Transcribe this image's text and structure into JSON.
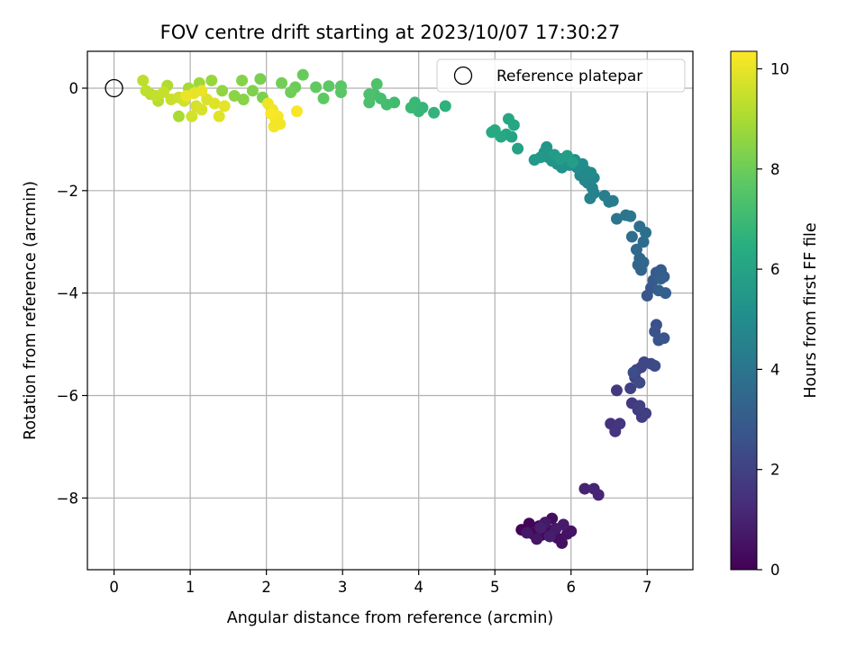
{
  "chart_data": {
    "type": "scatter",
    "title": "FOV centre drift starting at 2023/10/07 17:30:27",
    "xlabel": "Angular distance from reference (arcmin)",
    "ylabel": "Rotation from reference (arcmin)",
    "xlim": [
      -0.35,
      7.6
    ],
    "ylim": [
      -9.4,
      0.72
    ],
    "xticks": [
      0,
      1,
      2,
      3,
      4,
      5,
      6,
      7
    ],
    "yticks": [
      0,
      -2,
      -4,
      -6,
      -8
    ],
    "xtick_labels": [
      "0",
      "1",
      "2",
      "3",
      "4",
      "5",
      "6",
      "7"
    ],
    "ytick_labels": [
      "0",
      "−2",
      "−4",
      "−6",
      "−8"
    ],
    "grid": true,
    "legend": {
      "placement": "top-right",
      "entries": [
        "Reference platepar"
      ]
    },
    "reference_point": {
      "x": 0,
      "y": 0
    },
    "colorbar": {
      "label": "Hours from first FF file",
      "colormap": "viridis",
      "range": [
        0,
        10.35
      ],
      "ticks": [
        0,
        2,
        4,
        6,
        8,
        10
      ],
      "tick_labels": [
        "0",
        "2",
        "4",
        "6",
        "8",
        "10"
      ]
    },
    "points": [
      {
        "x": 5.35,
        "y": -8.62,
        "h": 0.05
      },
      {
        "x": 5.45,
        "y": -8.5,
        "h": 0.1
      },
      {
        "x": 5.5,
        "y": -8.7,
        "h": 0.15
      },
      {
        "x": 5.58,
        "y": -8.55,
        "h": 0.2
      },
      {
        "x": 5.62,
        "y": -8.72,
        "h": 0.25
      },
      {
        "x": 5.7,
        "y": -8.62,
        "h": 0.3
      },
      {
        "x": 5.75,
        "y": -8.4,
        "h": 0.35
      },
      {
        "x": 5.82,
        "y": -8.78,
        "h": 0.4
      },
      {
        "x": 5.88,
        "y": -8.88,
        "h": 0.45
      },
      {
        "x": 5.95,
        "y": -8.7,
        "h": 0.5
      },
      {
        "x": 6.0,
        "y": -8.65,
        "h": 0.55
      },
      {
        "x": 5.55,
        "y": -8.8,
        "h": 0.6
      },
      {
        "x": 5.42,
        "y": -8.68,
        "h": 0.65
      },
      {
        "x": 5.66,
        "y": -8.48,
        "h": 0.7
      },
      {
        "x": 5.8,
        "y": -8.6,
        "h": 0.75
      },
      {
        "x": 5.9,
        "y": -8.52,
        "h": 0.8
      },
      {
        "x": 5.72,
        "y": -8.75,
        "h": 0.85
      },
      {
        "x": 5.6,
        "y": -8.58,
        "h": 0.9
      },
      {
        "x": 6.18,
        "y": -7.82,
        "h": 1.0
      },
      {
        "x": 6.3,
        "y": -7.82,
        "h": 1.05
      },
      {
        "x": 6.36,
        "y": -7.94,
        "h": 1.1
      },
      {
        "x": 6.52,
        "y": -6.55,
        "h": 1.5
      },
      {
        "x": 6.58,
        "y": -6.7,
        "h": 1.55
      },
      {
        "x": 6.64,
        "y": -6.55,
        "h": 1.6
      },
      {
        "x": 6.6,
        "y": -5.9,
        "h": 1.7
      },
      {
        "x": 6.8,
        "y": -6.15,
        "h": 1.75
      },
      {
        "x": 6.88,
        "y": -6.28,
        "h": 1.8
      },
      {
        "x": 6.93,
        "y": -6.42,
        "h": 1.85
      },
      {
        "x": 6.98,
        "y": -6.35,
        "h": 1.9
      },
      {
        "x": 6.9,
        "y": -6.2,
        "h": 1.95
      },
      {
        "x": 6.78,
        "y": -5.86,
        "h": 2.0
      },
      {
        "x": 6.84,
        "y": -5.65,
        "h": 2.05
      },
      {
        "x": 6.86,
        "y": -5.5,
        "h": 2.1
      },
      {
        "x": 6.92,
        "y": -5.45,
        "h": 2.15
      },
      {
        "x": 6.96,
        "y": -5.35,
        "h": 2.2
      },
      {
        "x": 7.05,
        "y": -5.38,
        "h": 2.25
      },
      {
        "x": 7.1,
        "y": -5.42,
        "h": 2.3
      },
      {
        "x": 6.9,
        "y": -5.75,
        "h": 2.35
      },
      {
        "x": 6.82,
        "y": -5.55,
        "h": 2.4
      },
      {
        "x": 7.12,
        "y": -4.62,
        "h": 2.55
      },
      {
        "x": 7.1,
        "y": -4.75,
        "h": 2.6
      },
      {
        "x": 7.15,
        "y": -4.92,
        "h": 2.65
      },
      {
        "x": 7.22,
        "y": -4.88,
        "h": 2.7
      },
      {
        "x": 7.0,
        "y": -4.05,
        "h": 2.8
      },
      {
        "x": 7.05,
        "y": -3.9,
        "h": 2.85
      },
      {
        "x": 7.08,
        "y": -3.75,
        "h": 2.9
      },
      {
        "x": 7.12,
        "y": -3.6,
        "h": 2.95
      },
      {
        "x": 7.18,
        "y": -3.55,
        "h": 3.0
      },
      {
        "x": 7.22,
        "y": -3.68,
        "h": 3.05
      },
      {
        "x": 7.24,
        "y": -4.0,
        "h": 3.1
      },
      {
        "x": 7.15,
        "y": -3.95,
        "h": 3.15
      },
      {
        "x": 7.18,
        "y": -3.72,
        "h": 3.2
      },
      {
        "x": 6.88,
        "y": -3.45,
        "h": 3.3
      },
      {
        "x": 6.92,
        "y": -3.55,
        "h": 3.35
      },
      {
        "x": 6.95,
        "y": -3.4,
        "h": 3.4
      },
      {
        "x": 6.9,
        "y": -3.32,
        "h": 3.45
      },
      {
        "x": 6.86,
        "y": -3.15,
        "h": 3.5
      },
      {
        "x": 6.95,
        "y": -3.0,
        "h": 3.6
      },
      {
        "x": 6.8,
        "y": -2.9,
        "h": 3.7
      },
      {
        "x": 6.9,
        "y": -2.7,
        "h": 3.75
      },
      {
        "x": 6.98,
        "y": -2.82,
        "h": 3.8
      },
      {
        "x": 6.6,
        "y": -2.55,
        "h": 4.0
      },
      {
        "x": 6.72,
        "y": -2.48,
        "h": 4.05
      },
      {
        "x": 6.78,
        "y": -2.5,
        "h": 4.1
      },
      {
        "x": 6.5,
        "y": -2.22,
        "h": 4.3
      },
      {
        "x": 6.55,
        "y": -2.2,
        "h": 4.35
      },
      {
        "x": 6.44,
        "y": -2.1,
        "h": 4.4
      },
      {
        "x": 6.3,
        "y": -2.05,
        "h": 4.5
      },
      {
        "x": 6.25,
        "y": -2.15,
        "h": 4.55
      },
      {
        "x": 6.28,
        "y": -1.95,
        "h": 4.6
      },
      {
        "x": 6.22,
        "y": -1.85,
        "h": 4.65
      },
      {
        "x": 6.3,
        "y": -1.75,
        "h": 4.7
      },
      {
        "x": 6.18,
        "y": -1.8,
        "h": 4.75
      },
      {
        "x": 6.12,
        "y": -1.7,
        "h": 4.8
      },
      {
        "x": 6.2,
        "y": -1.62,
        "h": 4.85
      },
      {
        "x": 6.26,
        "y": -1.65,
        "h": 4.9
      },
      {
        "x": 6.08,
        "y": -1.55,
        "h": 4.95
      },
      {
        "x": 6.15,
        "y": -1.48,
        "h": 5.0
      },
      {
        "x": 6.05,
        "y": -1.4,
        "h": 5.05
      },
      {
        "x": 5.98,
        "y": -1.5,
        "h": 5.1
      },
      {
        "x": 5.92,
        "y": -1.42,
        "h": 5.15
      },
      {
        "x": 5.88,
        "y": -1.55,
        "h": 5.2
      },
      {
        "x": 5.82,
        "y": -1.48,
        "h": 5.25
      },
      {
        "x": 5.75,
        "y": -1.42,
        "h": 5.3
      },
      {
        "x": 5.7,
        "y": -1.35,
        "h": 5.35
      },
      {
        "x": 5.65,
        "y": -1.25,
        "h": 5.4
      },
      {
        "x": 5.68,
        "y": -1.15,
        "h": 5.45
      },
      {
        "x": 5.6,
        "y": -1.35,
        "h": 5.5
      },
      {
        "x": 5.52,
        "y": -1.4,
        "h": 5.55
      },
      {
        "x": 5.78,
        "y": -1.3,
        "h": 5.6
      },
      {
        "x": 5.86,
        "y": -1.38,
        "h": 5.65
      },
      {
        "x": 5.95,
        "y": -1.32,
        "h": 5.7
      },
      {
        "x": 6.02,
        "y": -1.45,
        "h": 5.75
      },
      {
        "x": 5.3,
        "y": -1.18,
        "h": 5.9
      },
      {
        "x": 5.22,
        "y": -0.95,
        "h": 6.0
      },
      {
        "x": 5.15,
        "y": -0.9,
        "h": 6.05
      },
      {
        "x": 5.25,
        "y": -0.72,
        "h": 6.1
      },
      {
        "x": 5.18,
        "y": -0.6,
        "h": 6.15
      },
      {
        "x": 5.08,
        "y": -0.95,
        "h": 6.2
      },
      {
        "x": 5.0,
        "y": -0.82,
        "h": 6.25
      },
      {
        "x": 4.96,
        "y": -0.86,
        "h": 6.3
      },
      {
        "x": 4.35,
        "y": -0.35,
        "h": 6.6
      },
      {
        "x": 4.2,
        "y": -0.48,
        "h": 6.7
      },
      {
        "x": 4.05,
        "y": -0.38,
        "h": 6.8
      },
      {
        "x": 4.0,
        "y": -0.45,
        "h": 6.85
      },
      {
        "x": 3.95,
        "y": -0.28,
        "h": 6.9
      },
      {
        "x": 3.9,
        "y": -0.38,
        "h": 6.95
      },
      {
        "x": 3.68,
        "y": -0.28,
        "h": 7.1
      },
      {
        "x": 3.58,
        "y": -0.32,
        "h": 7.15
      },
      {
        "x": 3.5,
        "y": -0.2,
        "h": 7.2
      },
      {
        "x": 3.42,
        "y": -0.12,
        "h": 7.25
      },
      {
        "x": 3.35,
        "y": -0.28,
        "h": 7.3
      },
      {
        "x": 3.35,
        "y": -0.12,
        "h": 7.35
      },
      {
        "x": 3.45,
        "y": 0.08,
        "h": 7.4
      },
      {
        "x": 2.98,
        "y": -0.08,
        "h": 7.6
      },
      {
        "x": 2.98,
        "y": 0.04,
        "h": 7.65
      },
      {
        "x": 2.82,
        "y": 0.04,
        "h": 7.7
      },
      {
        "x": 2.75,
        "y": -0.2,
        "h": 7.75
      },
      {
        "x": 2.65,
        "y": 0.02,
        "h": 7.8
      },
      {
        "x": 2.48,
        "y": 0.26,
        "h": 7.9
      },
      {
        "x": 2.38,
        "y": 0.02,
        "h": 8.0
      },
      {
        "x": 2.32,
        "y": -0.08,
        "h": 8.05
      },
      {
        "x": 2.2,
        "y": 0.1,
        "h": 8.1
      },
      {
        "x": 1.92,
        "y": 0.18,
        "h": 8.2
      },
      {
        "x": 1.95,
        "y": -0.18,
        "h": 8.25
      },
      {
        "x": 1.82,
        "y": -0.05,
        "h": 8.3
      },
      {
        "x": 1.68,
        "y": 0.15,
        "h": 8.4
      },
      {
        "x": 1.7,
        "y": -0.22,
        "h": 8.45
      },
      {
        "x": 1.58,
        "y": -0.15,
        "h": 8.5
      },
      {
        "x": 1.42,
        "y": -0.05,
        "h": 8.6
      },
      {
        "x": 1.28,
        "y": 0.15,
        "h": 8.7
      },
      {
        "x": 1.12,
        "y": 0.1,
        "h": 8.8
      },
      {
        "x": 0.98,
        "y": 0.0,
        "h": 8.9
      },
      {
        "x": 0.85,
        "y": -0.55,
        "h": 9.0
      },
      {
        "x": 0.7,
        "y": 0.05,
        "h": 9.1
      },
      {
        "x": 0.58,
        "y": -0.25,
        "h": 9.2
      },
      {
        "x": 0.48,
        "y": -0.12,
        "h": 9.25
      },
      {
        "x": 0.38,
        "y": 0.15,
        "h": 9.3
      },
      {
        "x": 0.42,
        "y": -0.05,
        "h": 9.35
      },
      {
        "x": 0.55,
        "y": -0.15,
        "h": 9.4
      },
      {
        "x": 0.65,
        "y": -0.08,
        "h": 9.45
      },
      {
        "x": 0.75,
        "y": -0.22,
        "h": 9.5
      },
      {
        "x": 0.85,
        "y": -0.18,
        "h": 9.55
      },
      {
        "x": 0.92,
        "y": -0.25,
        "h": 9.6
      },
      {
        "x": 1.02,
        "y": -0.55,
        "h": 9.65
      },
      {
        "x": 1.08,
        "y": -0.35,
        "h": 9.7
      },
      {
        "x": 1.15,
        "y": -0.42,
        "h": 9.75
      },
      {
        "x": 1.22,
        "y": -0.22,
        "h": 9.8
      },
      {
        "x": 1.32,
        "y": -0.3,
        "h": 9.85
      },
      {
        "x": 1.38,
        "y": -0.55,
        "h": 9.9
      },
      {
        "x": 1.45,
        "y": -0.35,
        "h": 9.95
      },
      {
        "x": 1.05,
        "y": -0.1,
        "h": 10.0
      },
      {
        "x": 1.15,
        "y": -0.05,
        "h": 10.05
      },
      {
        "x": 0.95,
        "y": -0.15,
        "h": 10.08
      },
      {
        "x": 2.02,
        "y": -0.3,
        "h": 10.1
      },
      {
        "x": 2.08,
        "y": -0.42,
        "h": 10.12
      },
      {
        "x": 2.12,
        "y": -0.6,
        "h": 10.15
      },
      {
        "x": 2.1,
        "y": -0.75,
        "h": 10.18
      },
      {
        "x": 2.18,
        "y": -0.7,
        "h": 10.2
      },
      {
        "x": 2.15,
        "y": -0.55,
        "h": 10.22
      },
      {
        "x": 2.4,
        "y": -0.45,
        "h": 10.25
      },
      {
        "x": 2.06,
        "y": -0.5,
        "h": 10.3
      }
    ]
  }
}
